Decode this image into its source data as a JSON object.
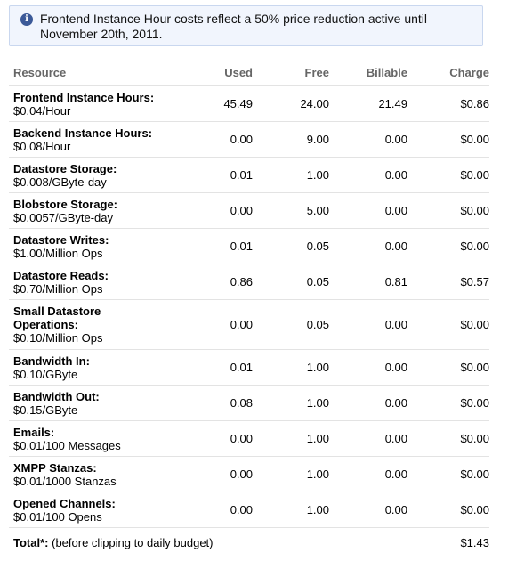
{
  "notice": {
    "text": "Frontend Instance Hour costs reflect a 50% price reduction active until November 20th, 2011."
  },
  "columns": {
    "resource": "Resource",
    "used": "Used",
    "free": "Free",
    "billable": "Billable",
    "charge": "Charge"
  },
  "rows": [
    {
      "name": "Frontend Instance Hours:",
      "rate": "$0.04/Hour",
      "used": "45.49",
      "free": "24.00",
      "billable": "21.49",
      "charge": "$0.86"
    },
    {
      "name": "Backend Instance Hours:",
      "rate": "$0.08/Hour",
      "used": "0.00",
      "free": "9.00",
      "billable": "0.00",
      "charge": "$0.00"
    },
    {
      "name": "Datastore Storage:",
      "rate": "$0.008/GByte-day",
      "used": "0.01",
      "free": "1.00",
      "billable": "0.00",
      "charge": "$0.00"
    },
    {
      "name": "Blobstore Storage:",
      "rate": "$0.0057/GByte-day",
      "used": "0.00",
      "free": "5.00",
      "billable": "0.00",
      "charge": "$0.00"
    },
    {
      "name": "Datastore Writes:",
      "rate": "$1.00/Million Ops",
      "used": "0.01",
      "free": "0.05",
      "billable": "0.00",
      "charge": "$0.00"
    },
    {
      "name": "Datastore Reads:",
      "rate": "$0.70/Million Ops",
      "used": "0.86",
      "free": "0.05",
      "billable": "0.81",
      "charge": "$0.57"
    },
    {
      "name": "Small Datastore Operations:",
      "rate": "$0.10/Million Ops",
      "used": "0.00",
      "free": "0.05",
      "billable": "0.00",
      "charge": "$0.00"
    },
    {
      "name": "Bandwidth In:",
      "rate": "$0.10/GByte",
      "used": "0.01",
      "free": "1.00",
      "billable": "0.00",
      "charge": "$0.00"
    },
    {
      "name": "Bandwidth Out:",
      "rate": "$0.15/GByte",
      "used": "0.08",
      "free": "1.00",
      "billable": "0.00",
      "charge": "$0.00"
    },
    {
      "name": "Emails:",
      "rate": "$0.01/100 Messages",
      "used": "0.00",
      "free": "1.00",
      "billable": "0.00",
      "charge": "$0.00"
    },
    {
      "name": "XMPP Stanzas:",
      "rate": "$0.01/1000 Stanzas",
      "used": "0.00",
      "free": "1.00",
      "billable": "0.00",
      "charge": "$0.00"
    },
    {
      "name": "Opened Channels:",
      "rate": "$0.01/100 Opens",
      "used": "0.00",
      "free": "1.00",
      "billable": "0.00",
      "charge": "$0.00"
    }
  ],
  "total": {
    "label": "Total*:",
    "note": "(before clipping to daily budget)",
    "charge": "$1.43"
  }
}
